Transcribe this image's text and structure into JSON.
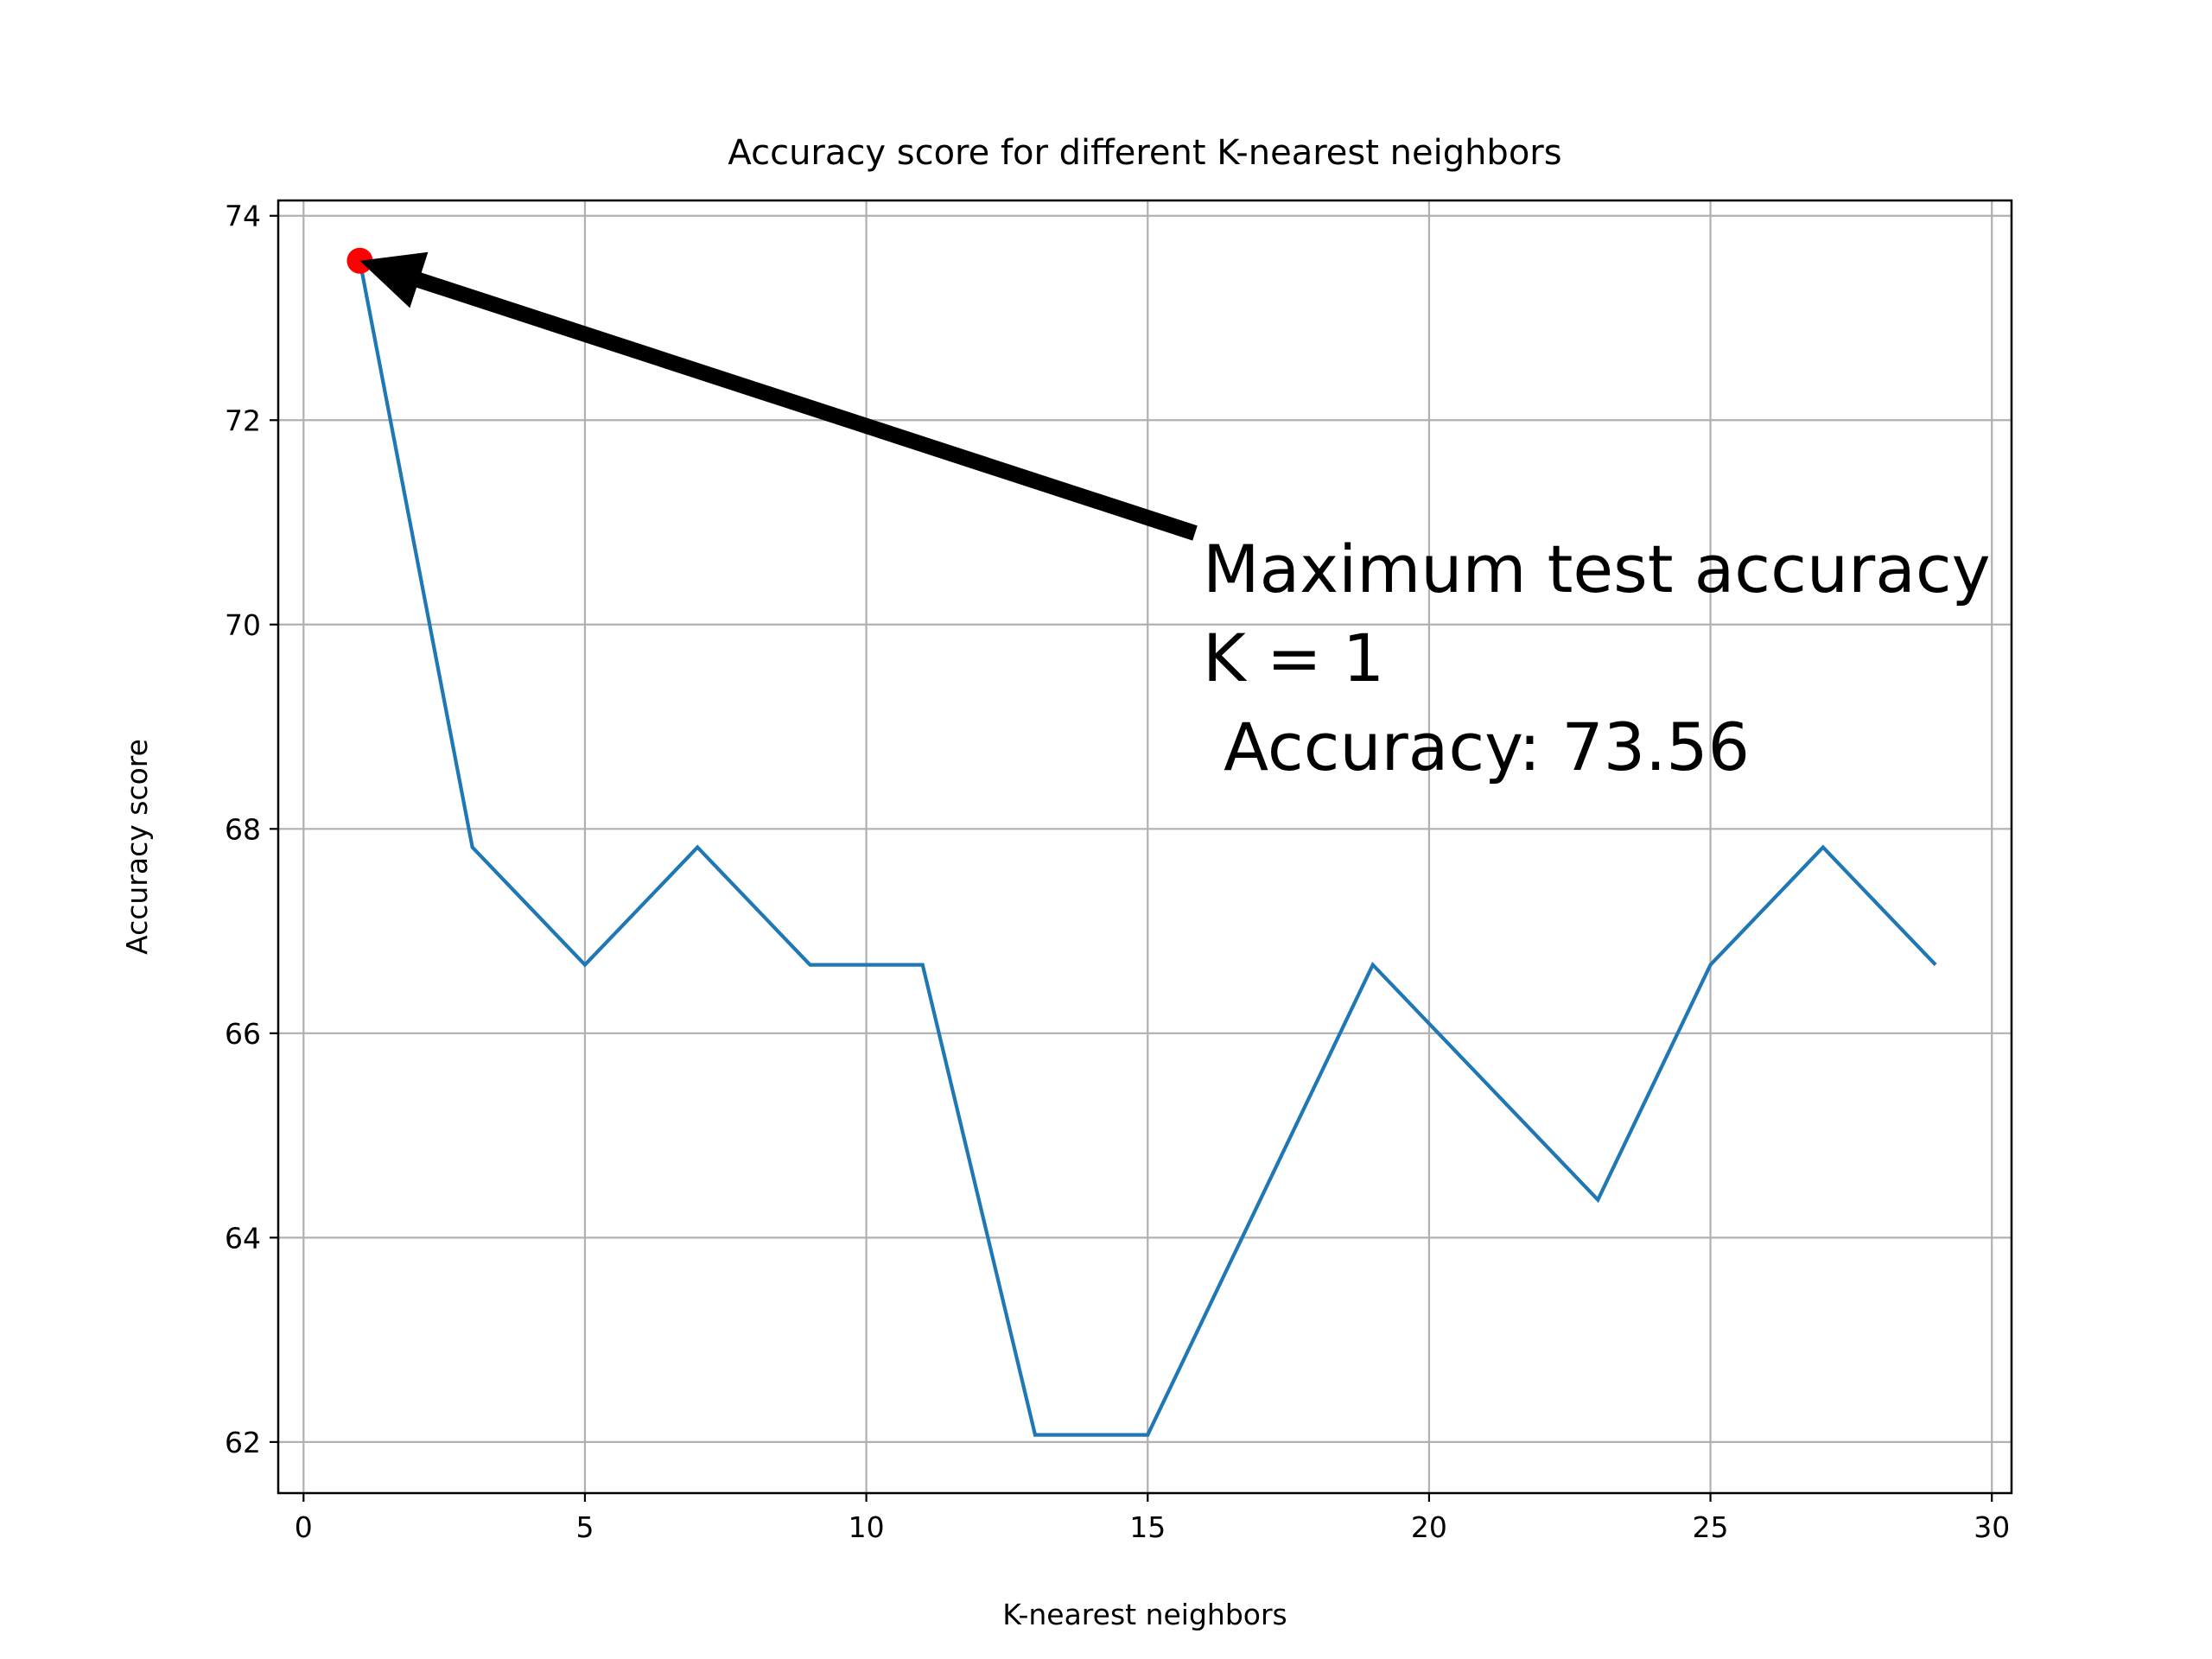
{
  "chart_data": {
    "type": "line",
    "title": "Accuracy score for different K-nearest neighbors",
    "xlabel": "K-nearest neighbors",
    "ylabel": "Accuracy score",
    "xlim": [
      -0.45,
      30.35
    ],
    "ylim": [
      61.5,
      74.15
    ],
    "xticks": [
      0,
      5,
      10,
      15,
      20,
      25,
      30
    ],
    "yticks": [
      62,
      64,
      66,
      68,
      70,
      72,
      74
    ],
    "xtick_labels": [
      "0",
      "5",
      "10",
      "15",
      "20",
      "25",
      "30"
    ],
    "ytick_labels": [
      "62",
      "64",
      "66",
      "68",
      "70",
      "72",
      "74"
    ],
    "grid": true,
    "series": [
      {
        "color": "#1f77b4",
        "x": [
          1,
          3,
          5,
          7,
          9,
          11,
          13,
          15,
          17,
          19,
          21,
          23,
          25,
          27,
          29
        ],
        "y": [
          73.56,
          67.82,
          66.67,
          67.82,
          66.67,
          66.67,
          62.07,
          62.07,
          64.37,
          66.67,
          65.52,
          64.37,
          66.67,
          67.82,
          66.67
        ]
      }
    ],
    "highlight_point": {
      "x": 1,
      "y": 73.56,
      "color": "#ff0000"
    },
    "annotation": {
      "lines": [
        "Maximum test accuracy",
        "K = 1",
        " Accuracy: 73.56"
      ],
      "arrow_target": {
        "x": 1,
        "y": 73.56
      },
      "arrow_color": "#000000"
    }
  }
}
